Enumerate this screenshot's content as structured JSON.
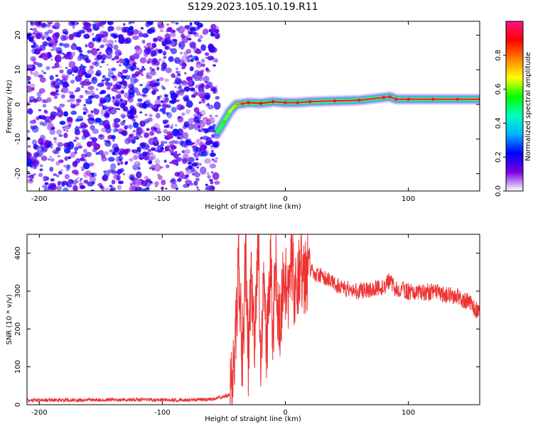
{
  "title": "S129.2023.105.10.19.R11",
  "chart_data": [
    {
      "type": "heatmap",
      "xlabel": "Height of straight line (km)",
      "ylabel": "Frequency (Hz)",
      "xlim": [
        -210,
        158
      ],
      "ylim": [
        -25,
        24
      ],
      "xticks": [
        -200,
        -100,
        0,
        100
      ],
      "yticks": [
        -20,
        -10,
        0,
        10,
        20
      ],
      "colorbar": {
        "label": "Normalized spectral amplitude",
        "range": [
          0.0,
          1.0
        ],
        "ticks": [
          0.0,
          0.2,
          0.4,
          0.6,
          0.8
        ],
        "colors": [
          "#ffffff",
          "#7a00e0",
          "#0000ff",
          "#00b0ff",
          "#00ffc0",
          "#00ff00",
          "#ffff00",
          "#ff8000",
          "#ff0000",
          "#ff1480"
        ]
      },
      "noise_region": {
        "x_range": [
          -210,
          -55
        ],
        "y_range": [
          -25,
          24
        ],
        "typical_amplitude": 0.15
      },
      "ridge": {
        "x": [
          -55,
          -50,
          -45,
          -40,
          -35,
          -30,
          -20,
          -10,
          0,
          10,
          20,
          40,
          60,
          80,
          85,
          90,
          100,
          120,
          140,
          158
        ],
        "y": [
          -8,
          -5,
          -2,
          0,
          0.2,
          0.5,
          0.3,
          0.8,
          0.5,
          0.5,
          0.8,
          1.0,
          1.2,
          2.0,
          2.2,
          1.5,
          1.5,
          1.5,
          1.5,
          1.5
        ],
        "amplitude": [
          0.5,
          0.55,
          0.65,
          0.75,
          0.85,
          0.9,
          0.9,
          0.9,
          0.95,
          0.95,
          0.95,
          0.95,
          0.95,
          0.95,
          0.95,
          0.95,
          0.95,
          0.95,
          0.95,
          0.95
        ]
      }
    },
    {
      "type": "line",
      "xlabel": "Height of straight line (km)",
      "ylabel": "SNR (10 * v/v)",
      "xlim": [
        -210,
        158
      ],
      "ylim": [
        0,
        450
      ],
      "xticks": [
        -200,
        -100,
        0,
        100
      ],
      "yticks": [
        0,
        100,
        200,
        300,
        400
      ],
      "color": "#ee3333",
      "series": [
        {
          "x": [
            -210,
            -180,
            -150,
            -120,
            -90,
            -60,
            -45,
            -42,
            -40,
            -38,
            -35,
            -32,
            -30,
            -28,
            -25,
            -22,
            -20,
            -18,
            -15,
            -12,
            -10,
            -8,
            -5,
            -2,
            0,
            2,
            5,
            8,
            10,
            12,
            15,
            18,
            20,
            25,
            30,
            40,
            50,
            60,
            70,
            80,
            85,
            90,
            100,
            110,
            120,
            130,
            140,
            150,
            158
          ],
          "y": [
            12,
            12,
            13,
            13,
            12,
            14,
            25,
            80,
            200,
            380,
            120,
            420,
            90,
            340,
            150,
            430,
            100,
            300,
            160,
            380,
            180,
            360,
            220,
            300,
            320,
            260,
            400,
            280,
            330,
            390,
            320,
            350,
            360,
            345,
            335,
            320,
            305,
            300,
            305,
            310,
            330,
            305,
            300,
            295,
            300,
            290,
            285,
            270,
            240
          ]
        }
      ]
    }
  ]
}
